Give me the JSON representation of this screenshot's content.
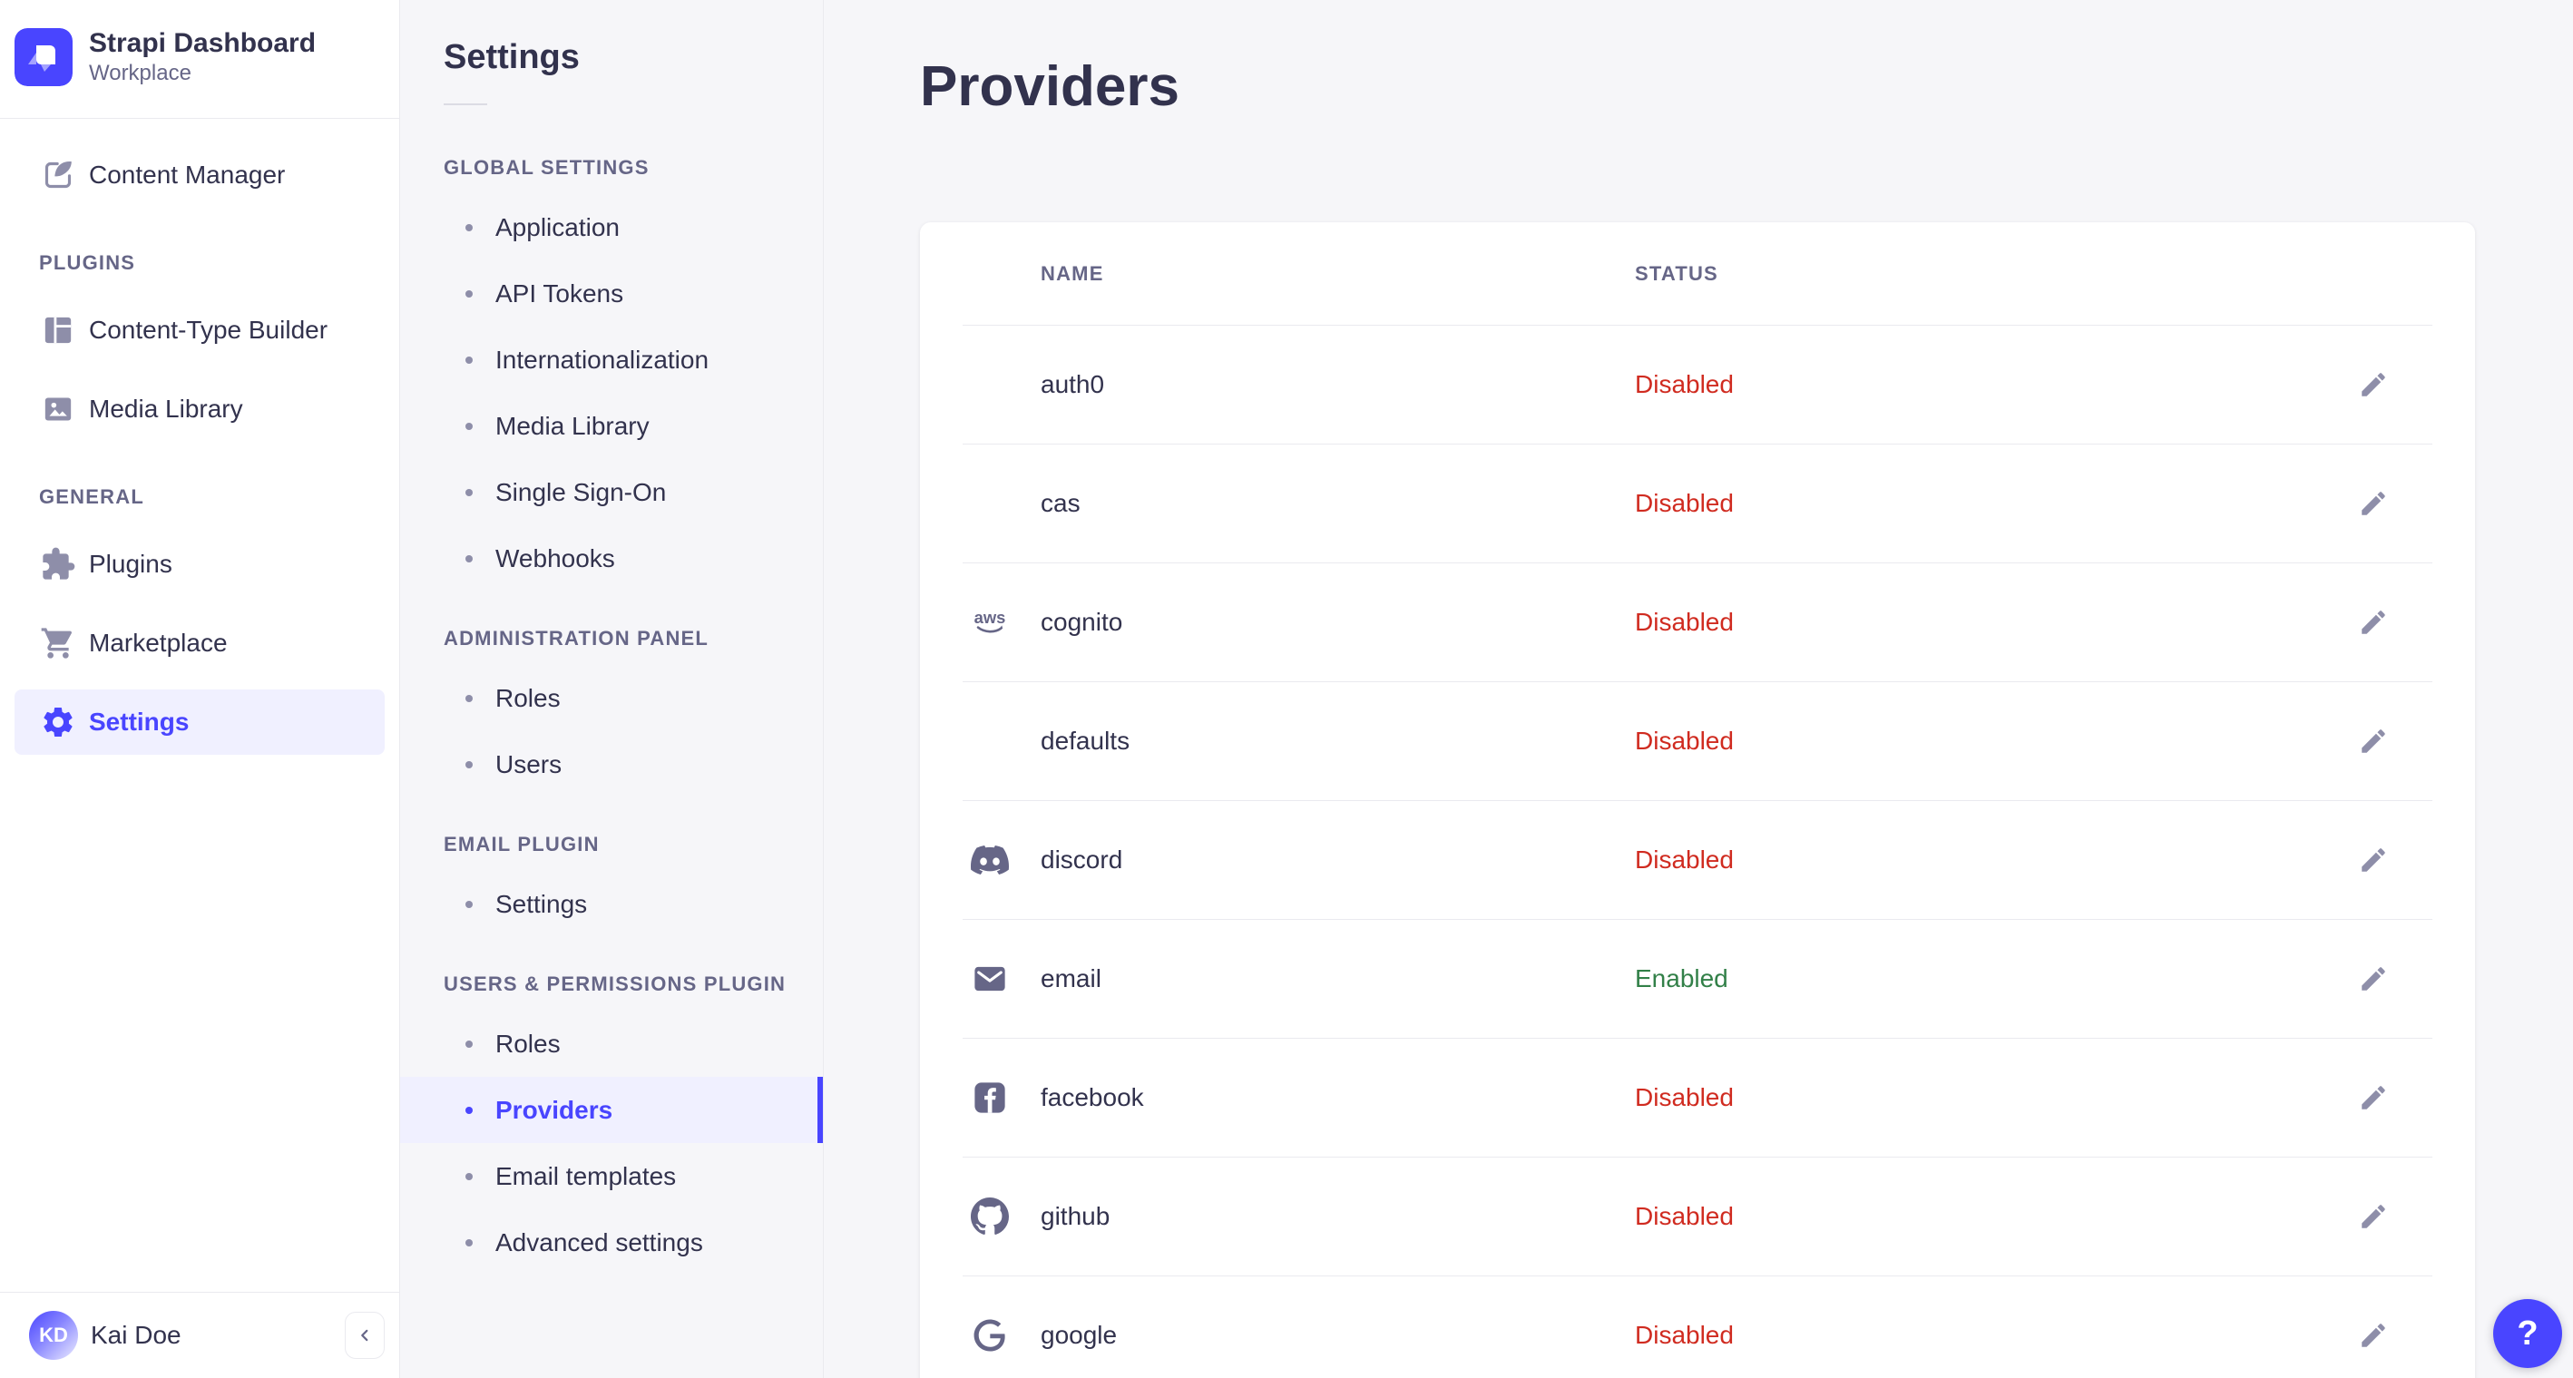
{
  "app": {
    "name": "Strapi Dashboard",
    "workspace": "Workplace"
  },
  "sidebar": {
    "groups": [
      {
        "heading": null,
        "items": [
          {
            "label": "Content Manager",
            "icon": "content-manager",
            "active": false
          }
        ]
      },
      {
        "heading": "PLUGINS",
        "items": [
          {
            "label": "Content-Type Builder",
            "icon": "content-type-builder",
            "active": false
          },
          {
            "label": "Media Library",
            "icon": "media-library",
            "active": false
          }
        ]
      },
      {
        "heading": "GENERAL",
        "items": [
          {
            "label": "Plugins",
            "icon": "plugins",
            "active": false
          },
          {
            "label": "Marketplace",
            "icon": "marketplace",
            "active": false
          },
          {
            "label": "Settings",
            "icon": "settings",
            "active": true
          }
        ]
      }
    ],
    "user": {
      "name": "Kai Doe",
      "initials": "KD"
    }
  },
  "settings_nav": {
    "title": "Settings",
    "sections": [
      {
        "heading": "GLOBAL SETTINGS",
        "items": [
          {
            "label": "Application",
            "active": false
          },
          {
            "label": "API Tokens",
            "active": false
          },
          {
            "label": "Internationalization",
            "active": false
          },
          {
            "label": "Media Library",
            "active": false
          },
          {
            "label": "Single Sign-On",
            "active": false
          },
          {
            "label": "Webhooks",
            "active": false
          }
        ]
      },
      {
        "heading": "ADMINISTRATION PANEL",
        "items": [
          {
            "label": "Roles",
            "active": false
          },
          {
            "label": "Users",
            "active": false
          }
        ]
      },
      {
        "heading": "EMAIL PLUGIN",
        "items": [
          {
            "label": "Settings",
            "active": false
          }
        ]
      },
      {
        "heading": "USERS & PERMISSIONS PLUGIN",
        "items": [
          {
            "label": "Roles",
            "active": false
          },
          {
            "label": "Providers",
            "active": true
          },
          {
            "label": "Email templates",
            "active": false
          },
          {
            "label": "Advanced settings",
            "active": false
          }
        ]
      }
    ]
  },
  "main": {
    "title": "Providers",
    "table": {
      "columns": [
        "NAME",
        "STATUS"
      ],
      "rows": [
        {
          "name": "auth0",
          "icon": null,
          "status": "Disabled",
          "state": "disabled"
        },
        {
          "name": "cas",
          "icon": null,
          "status": "Disabled",
          "state": "disabled"
        },
        {
          "name": "cognito",
          "icon": "aws",
          "status": "Disabled",
          "state": "disabled"
        },
        {
          "name": "defaults",
          "icon": null,
          "status": "Disabled",
          "state": "disabled"
        },
        {
          "name": "discord",
          "icon": "discord",
          "status": "Disabled",
          "state": "disabled"
        },
        {
          "name": "email",
          "icon": "email",
          "status": "Enabled",
          "state": "enabled"
        },
        {
          "name": "facebook",
          "icon": "facebook",
          "status": "Disabled",
          "state": "disabled"
        },
        {
          "name": "github",
          "icon": "github",
          "status": "Disabled",
          "state": "disabled"
        },
        {
          "name": "google",
          "icon": "google",
          "status": "Disabled",
          "state": "disabled"
        }
      ]
    }
  },
  "help": {
    "label": "?"
  },
  "colors": {
    "accent": "#4945FF",
    "accent_bg": "#F0F0FF",
    "enabled": "#328048",
    "disabled": "#D02B20",
    "text": "#32324D",
    "text_muted": "#666687",
    "icon_muted": "#8E8EA9",
    "border": "#EAEAEF",
    "bg": "#F6F6F9"
  }
}
